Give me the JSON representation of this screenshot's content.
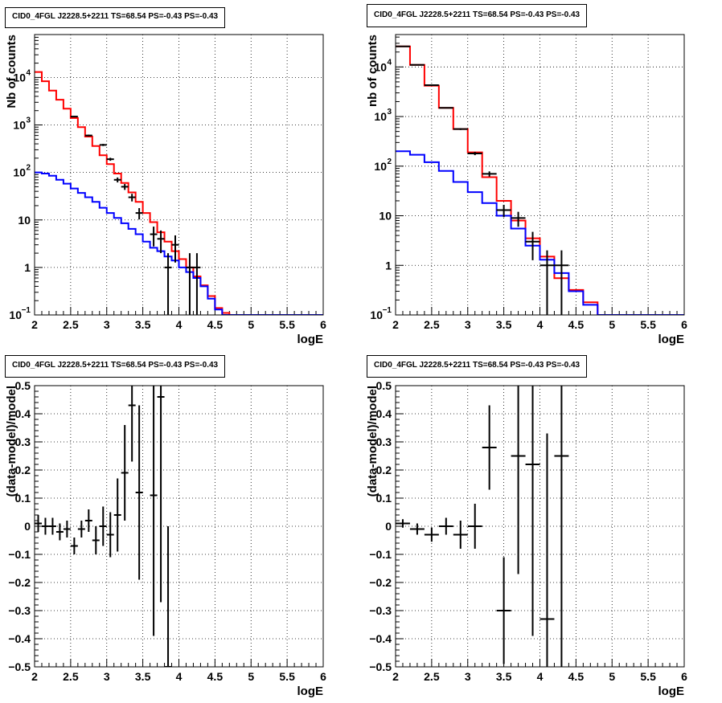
{
  "chart_data": [
    {
      "type": "histogram",
      "title": "CID0_4FGL J2228.5+2211 TS=68.54 PS=-0.43 PS=-0.43",
      "xlabel": "logE",
      "ylabel": "Nb of counts",
      "xlim": [
        2,
        6
      ],
      "ylim": [
        0.1,
        80000
      ],
      "log_y": true,
      "grid": true,
      "x_ticks": [
        "2",
        "2.5",
        "3",
        "3.5",
        "4",
        "4.5",
        "5",
        "5.5",
        "6"
      ],
      "y_ticks": [
        {
          "v": 0.1,
          "label": "10",
          "sup": "−1"
        },
        {
          "v": 1,
          "label": "1",
          "sup": ""
        },
        {
          "v": 10,
          "label": "10",
          "sup": ""
        },
        {
          "v": 100,
          "label": "10",
          "sup": "2"
        },
        {
          "v": 1000,
          "label": "10",
          "sup": "3"
        },
        {
          "v": 10000,
          "label": "10",
          "sup": "4"
        }
      ],
      "bins": [
        2.0,
        2.1,
        2.2,
        2.3,
        2.4,
        2.5,
        2.6,
        2.7,
        2.8,
        2.9,
        3.0,
        3.1,
        3.2,
        3.3,
        3.4,
        3.5,
        3.6,
        3.7,
        3.8,
        3.9,
        4.0,
        4.1,
        4.2,
        4.3,
        4.4,
        4.5,
        4.6,
        4.7,
        4.8,
        4.9,
        5.0,
        5.1,
        5.2,
        5.3,
        5.4,
        5.5,
        5.6,
        5.7,
        5.8,
        5.9,
        6.0
      ],
      "series": [
        {
          "name": "",
          "color": "#ff0000",
          "values": [
            13000,
            8300,
            5300,
            3400,
            2200,
            1400,
            900,
            570,
            360,
            230,
            150,
            95,
            60,
            38,
            24,
            14,
            9,
            5.5,
            3.5,
            2.2,
            1.5,
            1.0,
            0.65,
            0.42,
            0.25,
            0.14,
            0.11,
            0.1,
            0.1,
            0.1,
            0.1,
            0.1,
            0.1,
            0.1,
            0.1,
            0.1,
            0.1,
            0.1,
            0.1,
            0.1
          ]
        },
        {
          "name": "",
          "color": "#0000ff",
          "values": [
            100,
            95,
            85,
            70,
            58,
            46,
            37,
            30,
            24,
            18,
            14,
            11,
            8.5,
            6.5,
            5,
            3.5,
            2.6,
            2.2,
            1.7,
            1.4,
            1.0,
            0.8,
            0.6,
            0.4,
            0.22,
            0.13,
            0.1,
            0.1,
            0.1,
            0.1,
            0.1,
            0.1,
            0.1,
            0.1,
            0.1,
            0.1,
            0.1,
            0.1,
            0.1,
            0.1
          ]
        }
      ],
      "data_points": [
        {
          "x": 2.55,
          "y": 1500
        },
        {
          "x": 2.75,
          "y": 600
        },
        {
          "x": 2.95,
          "y": 380
        },
        {
          "x": 3.05,
          "y": 190
        },
        {
          "x": 3.15,
          "y": 70
        },
        {
          "x": 3.25,
          "y": 50
        },
        {
          "x": 3.35,
          "y": 30
        },
        {
          "x": 3.45,
          "y": 14
        },
        {
          "x": 3.65,
          "y": 5
        },
        {
          "x": 3.75,
          "y": 4
        },
        {
          "x": 3.85,
          "y": 1
        },
        {
          "x": 3.95,
          "y": 3
        },
        {
          "x": 4.15,
          "y": 1
        },
        {
          "x": 4.25,
          "y": 1
        }
      ]
    },
    {
      "type": "histogram",
      "title": "CID0_4FGL J2228.5+2211 TS=68.54 PS=-0.43 PS=-0.43",
      "xlabel": "logE",
      "ylabel": "nb of counts",
      "xlim": [
        2,
        6
      ],
      "ylim": [
        0.1,
        45000
      ],
      "log_y": true,
      "grid": true,
      "x_ticks": [
        "2",
        "2.5",
        "3",
        "3.5",
        "4",
        "4.5",
        "5",
        "5.5",
        "6"
      ],
      "y_ticks": [
        {
          "v": 0.1,
          "label": "10",
          "sup": "−1"
        },
        {
          "v": 1,
          "label": "1",
          "sup": ""
        },
        {
          "v": 10,
          "label": "10",
          "sup": ""
        },
        {
          "v": 100,
          "label": "10",
          "sup": "2"
        },
        {
          "v": 1000,
          "label": "10",
          "sup": "3"
        },
        {
          "v": 10000,
          "label": "10",
          "sup": "4"
        }
      ],
      "bins": [
        2.0,
        2.2,
        2.4,
        2.6,
        2.8,
        3.0,
        3.2,
        3.4,
        3.6,
        3.8,
        4.0,
        4.2,
        4.4,
        4.6,
        4.8,
        5.0,
        5.2,
        5.4,
        5.6,
        5.8,
        6.0
      ],
      "series": [
        {
          "name": "",
          "color": "#ff0000",
          "values": [
            26000,
            11000,
            4200,
            1500,
            560,
            190,
            60,
            20,
            8,
            3.5,
            1.5,
            0.55,
            0.32,
            0.18,
            0.1,
            0.1,
            0.1,
            0.1,
            0.1,
            0.1
          ]
        },
        {
          "name": "",
          "color": "#0000ff",
          "values": [
            200,
            170,
            120,
            80,
            48,
            30,
            18,
            10,
            5.5,
            2.5,
            1.3,
            0.7,
            0.3,
            0.16,
            0.1,
            0.1,
            0.1,
            0.1,
            0.1,
            0.1
          ]
        }
      ],
      "data_points": [
        {
          "x": 2.1,
          "y": 26000
        },
        {
          "x": 2.3,
          "y": 11000
        },
        {
          "x": 2.5,
          "y": 4300
        },
        {
          "x": 2.7,
          "y": 1500
        },
        {
          "x": 2.9,
          "y": 560
        },
        {
          "x": 3.1,
          "y": 180
        },
        {
          "x": 3.3,
          "y": 70
        },
        {
          "x": 3.5,
          "y": 13
        },
        {
          "x": 3.7,
          "y": 9
        },
        {
          "x": 3.9,
          "y": 3
        },
        {
          "x": 4.1,
          "y": 1
        },
        {
          "x": 4.3,
          "y": 1
        }
      ]
    },
    {
      "type": "scatter",
      "title": "CID0_4FGL J2228.5+2211 TS=68.54 PS=-0.43 PS=-0.43",
      "xlabel": "logE",
      "ylabel": "(data-model)/model",
      "xlim": [
        2,
        6
      ],
      "ylim": [
        -0.5,
        0.5
      ],
      "log_y": false,
      "grid": true,
      "x_ticks": [
        "2",
        "2.5",
        "3",
        "3.5",
        "4",
        "4.5",
        "5",
        "5.5",
        "6"
      ],
      "y_ticks": [
        {
          "v": -0.5,
          "label": "−0.5"
        },
        {
          "v": -0.4,
          "label": "−0.4"
        },
        {
          "v": -0.3,
          "label": "−0.3"
        },
        {
          "v": -0.2,
          "label": "−0.2"
        },
        {
          "v": -0.1,
          "label": "−0.1"
        },
        {
          "v": 0,
          "label": "0"
        },
        {
          "v": 0.1,
          "label": "0.1"
        },
        {
          "v": 0.2,
          "label": "0.2"
        },
        {
          "v": 0.3,
          "label": "0.3"
        },
        {
          "v": 0.4,
          "label": "0.4"
        },
        {
          "v": 0.5,
          "label": "0.5"
        }
      ],
      "points": [
        {
          "x": 2.05,
          "y": 0.01,
          "xerr": 0.05,
          "yerr": 0.03
        },
        {
          "x": 2.15,
          "y": 0.0,
          "xerr": 0.05,
          "yerr": 0.03
        },
        {
          "x": 2.25,
          "y": 0.0,
          "xerr": 0.05,
          "yerr": 0.03
        },
        {
          "x": 2.35,
          "y": -0.02,
          "xerr": 0.05,
          "yerr": 0.03
        },
        {
          "x": 2.45,
          "y": -0.01,
          "xerr": 0.05,
          "yerr": 0.03
        },
        {
          "x": 2.55,
          "y": -0.07,
          "xerr": 0.05,
          "yerr": 0.03
        },
        {
          "x": 2.65,
          "y": -0.01,
          "xerr": 0.05,
          "yerr": 0.03
        },
        {
          "x": 2.75,
          "y": 0.02,
          "xerr": 0.05,
          "yerr": 0.04
        },
        {
          "x": 2.85,
          "y": -0.05,
          "xerr": 0.05,
          "yerr": 0.05
        },
        {
          "x": 2.95,
          "y": 0.0,
          "xerr": 0.05,
          "yerr": 0.07
        },
        {
          "x": 3.05,
          "y": -0.03,
          "xerr": 0.05,
          "yerr": 0.08
        },
        {
          "x": 3.15,
          "y": 0.04,
          "xerr": 0.05,
          "yerr": 0.13
        },
        {
          "x": 3.25,
          "y": 0.19,
          "xerr": 0.05,
          "yerr": 0.17
        },
        {
          "x": 3.35,
          "y": 0.43,
          "xerr": 0.05,
          "yerr": 0.2
        },
        {
          "x": 3.45,
          "y": 0.12,
          "xerr": 0.05,
          "yerr": 0.31
        },
        {
          "x": 3.65,
          "y": 0.11,
          "xerr": 0.05,
          "yerr": 0.5
        },
        {
          "x": 3.75,
          "y": 0.46,
          "xerr": 0.05,
          "yerr": 0.73
        },
        {
          "x": 3.85,
          "y": -0.5,
          "xerr": 0.05,
          "yerr": 0.5
        }
      ]
    },
    {
      "type": "scatter",
      "title": "CID0_4FGL J2228.5+2211 TS=68.54 PS=-0.43 PS=-0.43",
      "xlabel": "logE",
      "ylabel": "(data-model)/model",
      "xlim": [
        2,
        6
      ],
      "ylim": [
        -0.5,
        0.5
      ],
      "log_y": false,
      "grid": true,
      "x_ticks": [
        "2",
        "2.5",
        "3",
        "3.5",
        "4",
        "4.5",
        "5",
        "5.5",
        "6"
      ],
      "y_ticks": [
        {
          "v": -0.5,
          "label": "−0.5"
        },
        {
          "v": -0.4,
          "label": "−0.4"
        },
        {
          "v": -0.3,
          "label": "−0.3"
        },
        {
          "v": -0.2,
          "label": "−0.2"
        },
        {
          "v": -0.1,
          "label": "−0.1"
        },
        {
          "v": 0,
          "label": "0"
        },
        {
          "v": 0.1,
          "label": "0.1"
        },
        {
          "v": 0.2,
          "label": "0.2"
        },
        {
          "v": 0.3,
          "label": "0.3"
        },
        {
          "v": 0.4,
          "label": "0.4"
        },
        {
          "v": 0.5,
          "label": "0.5"
        }
      ],
      "points": [
        {
          "x": 2.1,
          "y": 0.01,
          "xerr": 0.1,
          "yerr": 0.015
        },
        {
          "x": 2.3,
          "y": -0.01,
          "xerr": 0.1,
          "yerr": 0.02
        },
        {
          "x": 2.5,
          "y": -0.03,
          "xerr": 0.1,
          "yerr": 0.025
        },
        {
          "x": 2.7,
          "y": 0.0,
          "xerr": 0.1,
          "yerr": 0.03
        },
        {
          "x": 2.9,
          "y": -0.03,
          "xerr": 0.1,
          "yerr": 0.05
        },
        {
          "x": 3.1,
          "y": 0.0,
          "xerr": 0.1,
          "yerr": 0.08
        },
        {
          "x": 3.3,
          "y": 0.28,
          "xerr": 0.1,
          "yerr": 0.15
        },
        {
          "x": 3.5,
          "y": -0.3,
          "xerr": 0.1,
          "yerr": 0.19
        },
        {
          "x": 3.7,
          "y": 0.25,
          "xerr": 0.1,
          "yerr": 0.42
        },
        {
          "x": 3.9,
          "y": 0.22,
          "xerr": 0.1,
          "yerr": 0.61
        },
        {
          "x": 4.1,
          "y": -0.33,
          "xerr": 0.1,
          "yerr": 0.66
        },
        {
          "x": 4.3,
          "y": 0.25,
          "xerr": 0.1,
          "yerr": 0.86
        }
      ]
    }
  ]
}
